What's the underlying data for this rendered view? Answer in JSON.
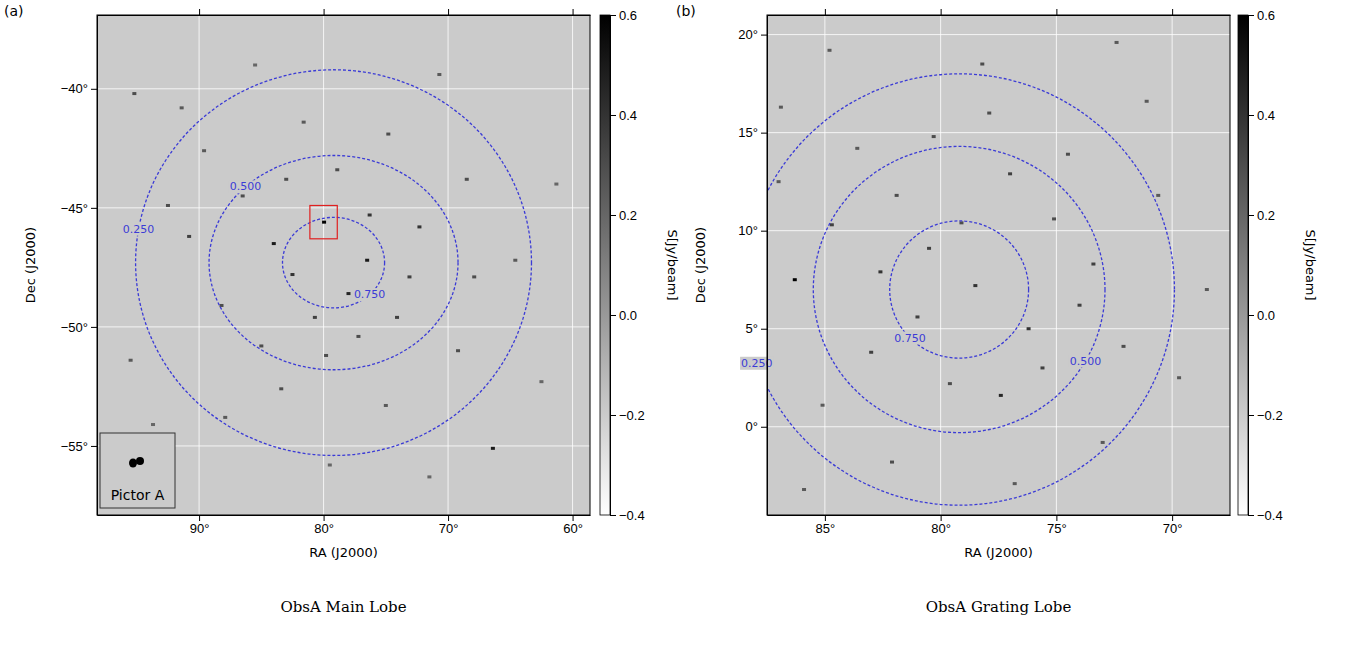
{
  "chart_data": [
    {
      "type": "sky_map",
      "panel_label": "(a)",
      "caption": "ObsA Main Lobe",
      "xlabel": "RA (J2000)",
      "ylabel": "Dec (J2000)",
      "xlim": [
        98.2,
        58.6
      ],
      "ylim": [
        -57.9,
        -36.9
      ],
      "xticks": [
        {
          "value": 90,
          "label": "90°"
        },
        {
          "value": 80,
          "label": "80°"
        },
        {
          "value": 70,
          "label": "70°"
        },
        {
          "value": 60,
          "label": "60°"
        }
      ],
      "yticks": [
        {
          "value": -40,
          "label": "−40°"
        },
        {
          "value": -45,
          "label": "−45°"
        },
        {
          "value": -50,
          "label": "−50°"
        },
        {
          "value": -55,
          "label": "−55°"
        }
      ],
      "grid": true,
      "colorbar": {
        "label": "S[Jy/beam]",
        "range": [
          -0.4,
          0.6
        ],
        "ticks": [
          {
            "value": -0.4,
            "label": "−0.4"
          },
          {
            "value": -0.2,
            "label": "−0.2"
          },
          {
            "value": 0,
            "label": "0.0"
          },
          0.2,
          0.4,
          0.6
        ]
      },
      "contours": [
        {
          "label": "0.250",
          "center": [
            79.2,
            -47.3
          ],
          "radius": [
            15.9,
            8.1
          ]
        },
        {
          "label": "0.500",
          "center": [
            79.2,
            -47.3
          ],
          "radius": [
            10.0,
            4.5
          ]
        },
        {
          "label": "0.750",
          "center": [
            79.2,
            -47.3
          ],
          "radius": [
            4.1,
            1.9
          ]
        }
      ],
      "highlight_box": {
        "x": [
          81.1,
          78.9
        ],
        "y": [
          -46.3,
          -44.9
        ]
      },
      "inset": {
        "label": "Pictor A"
      },
      "sources": {
        "x": [
          79.96,
          84.0,
          82.5,
          78.0,
          76.5,
          80.7,
          77.2,
          86.5,
          72.3,
          73.1,
          88.2,
          90.8,
          92.5,
          68.5,
          69.2,
          75.0,
          83.4,
          87.9,
          66.4,
          64.6,
          95.2,
          91.4,
          74.8,
          81.6,
          70.7,
          85.5,
          62.5,
          95.5,
          79.5,
          71.5,
          85.0,
          78.9,
          83.0,
          74.1,
          79.8,
          89.6,
          67.9,
          93.7,
          61.3,
          76.3
        ],
        "y": [
          -45.6,
          -46.5,
          -47.8,
          -48.6,
          -47.2,
          -49.6,
          -50.4,
          -44.5,
          -45.8,
          -47.9,
          -49.1,
          -46.2,
          -44.9,
          -43.8,
          -51.0,
          -53.3,
          -52.6,
          -53.8,
          -55.1,
          -47.2,
          -40.2,
          -40.8,
          -41.9,
          -41.4,
          -39.4,
          -39.0,
          -52.3,
          -51.4,
          -55.8,
          -56.3,
          -50.8,
          -43.4,
          -43.8,
          -49.6,
          -51.2,
          -42.6,
          -47.9,
          -54.1,
          -44.0,
          -45.3
        ],
        "flux": [
          0.6,
          0.5,
          0.4,
          0.45,
          0.5,
          0.35,
          0.3,
          0.3,
          0.4,
          0.35,
          0.3,
          0.35,
          0.3,
          0.3,
          0.3,
          0.25,
          0.3,
          0.25,
          0.5,
          0.25,
          0.3,
          0.25,
          0.3,
          0.25,
          0.25,
          0.2,
          0.2,
          0.25,
          0.2,
          0.2,
          0.3,
          0.3,
          0.3,
          0.35,
          0.3,
          0.25,
          0.3,
          0.2,
          0.2,
          0.4
        ]
      }
    },
    {
      "type": "sky_map",
      "panel_label": "(b)",
      "caption": "ObsA Grating Lobe",
      "xlabel": "RA (J2000)",
      "ylabel": "Dec (J2000)",
      "xlim": [
        87.5,
        67.5
      ],
      "ylim": [
        -4.5,
        21.0
      ],
      "xticks": [
        {
          "value": 85,
          "label": "85°"
        },
        {
          "value": 80,
          "label": "80°"
        },
        {
          "value": 75,
          "label": "75°"
        },
        {
          "value": 70,
          "label": "70°"
        }
      ],
      "yticks": [
        {
          "value": 0,
          "label": "0°"
        },
        {
          "value": 5,
          "label": "5°"
        },
        {
          "value": 10,
          "label": "10°"
        },
        {
          "value": 15,
          "label": "15°"
        },
        {
          "value": 20,
          "label": "20°"
        }
      ],
      "grid": true,
      "colorbar": {
        "label": "S[Jy/beam]",
        "range": [
          -0.4,
          0.6
        ],
        "ticks": [
          {
            "value": -0.4,
            "label": "−0.4"
          },
          {
            "value": -0.2,
            "label": "−0.2"
          },
          {
            "value": 0,
            "label": "0.0"
          },
          0.2,
          0.4,
          0.6
        ]
      },
      "contours": [
        {
          "label": "0.750",
          "center": [
            79.2,
            7.0
          ],
          "radius": [
            3.0,
            3.5
          ]
        },
        {
          "label": "0.500",
          "center": [
            79.2,
            7.0
          ],
          "radius": [
            6.3,
            7.3
          ]
        },
        {
          "label": "0.250",
          "center": [
            79.2,
            7.0
          ],
          "radius": [
            9.3,
            11.0
          ]
        }
      ],
      "sources": {
        "x": [
          78.5,
          80.5,
          76.2,
          83.0,
          75.1,
          81.9,
          86.3,
          77.4,
          79.6,
          73.4,
          72.1,
          84.7,
          85.1,
          74.5,
          80.3,
          77.0,
          83.6,
          86.9,
          70.6,
          69.7,
          82.1,
          76.8,
          73.0,
          85.9,
          78.2,
          72.4,
          84.8,
          71.1,
          81.0,
          79.1,
          75.6,
          87.0,
          68.5,
          82.6,
          74.0,
          77.9
        ],
        "y": [
          7.2,
          9.1,
          5.0,
          3.8,
          10.6,
          11.8,
          7.5,
          1.6,
          2.2,
          8.3,
          4.1,
          10.3,
          1.1,
          13.9,
          14.8,
          12.9,
          14.2,
          16.3,
          11.8,
          2.5,
          -1.8,
          -2.9,
          -0.8,
          -3.2,
          18.5,
          19.6,
          19.2,
          16.6,
          5.6,
          10.4,
          3.0,
          12.5,
          7.0,
          7.9,
          6.2,
          16.0
        ],
        "flux": [
          0.4,
          0.35,
          0.4,
          0.35,
          0.3,
          0.3,
          0.6,
          0.45,
          0.3,
          0.35,
          0.3,
          0.35,
          0.25,
          0.3,
          0.3,
          0.35,
          0.25,
          0.25,
          0.25,
          0.25,
          0.3,
          0.25,
          0.25,
          0.25,
          0.3,
          0.25,
          0.25,
          0.25,
          0.35,
          0.3,
          0.35,
          0.25,
          0.25,
          0.4,
          0.35,
          0.3
        ]
      }
    }
  ]
}
